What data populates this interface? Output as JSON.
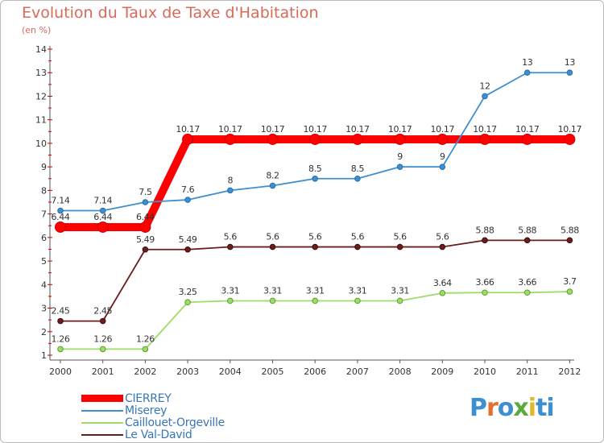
{
  "header": {
    "title": "Evolution du Taux de Taxe d'Habitation",
    "subtitle": "(en %)"
  },
  "logo": {
    "text": "Proxiti",
    "letters": [
      "P",
      "r",
      "o",
      "x",
      "i",
      "ti"
    ]
  },
  "colors": {
    "title": "#d86a5a",
    "axis": "#555555",
    "cierrey": "#ff0000",
    "miserey": "#3d8fd0",
    "caillouet": "#9edc6a",
    "levaldavid": "#6b1d1d",
    "legend_text": "#3a76b3"
  },
  "chart_data": {
    "type": "line",
    "title": "Evolution du Taux de Taxe d'Habitation",
    "subtitle": "(en %)",
    "xlabel": "",
    "ylabel": "",
    "x": [
      "2000",
      "2001",
      "2002",
      "2003",
      "2004",
      "2005",
      "2006",
      "2007",
      "2008",
      "2009",
      "2010",
      "2011",
      "2012"
    ],
    "ylim": [
      1,
      14
    ],
    "yticks": [
      1,
      2,
      3,
      4,
      5,
      6,
      7,
      8,
      9,
      10,
      11,
      12,
      13,
      14
    ],
    "grid": false,
    "legend_position": "bottom-left",
    "series": [
      {
        "name": "CIERREY",
        "color": "#ff0000",
        "style": "thick",
        "values": [
          6.44,
          6.44,
          6.44,
          10.17,
          10.17,
          10.17,
          10.17,
          10.17,
          10.17,
          10.17,
          10.17,
          10.17,
          10.17
        ],
        "labels": [
          "6.44",
          "6.44",
          "6.44",
          "10.17",
          "10.17",
          "10.17",
          "10.17",
          "10.17",
          "10.17",
          "10.17",
          "10.17",
          "10.17",
          "10.17"
        ]
      },
      {
        "name": "Miserey",
        "color": "#3d8fd0",
        "style": "thin",
        "values": [
          7.14,
          7.14,
          7.5,
          7.6,
          8,
          8.2,
          8.5,
          8.5,
          9,
          9,
          12,
          13,
          13
        ],
        "labels": [
          "7.14",
          "7.14",
          "7.5",
          "7.6",
          "8",
          "8.2",
          "8.5",
          "8.5",
          "9",
          "9",
          "12",
          "13",
          "13"
        ]
      },
      {
        "name": "Caillouet-Orgeville",
        "color": "#9edc6a",
        "style": "thin",
        "values": [
          1.26,
          1.26,
          1.26,
          3.25,
          3.31,
          3.31,
          3.31,
          3.31,
          3.31,
          3.64,
          3.66,
          3.66,
          3.7
        ],
        "labels": [
          "1.26",
          "1.26",
          "1.26",
          "3.25",
          "3.31",
          "3.31",
          "3.31",
          "3.31",
          "3.31",
          "3.64",
          "3.66",
          "3.66",
          "3.7"
        ]
      },
      {
        "name": "Le Val-David",
        "color": "#6b1d1d",
        "style": "thin",
        "values": [
          2.45,
          2.45,
          5.49,
          5.49,
          5.6,
          5.6,
          5.6,
          5.6,
          5.6,
          5.6,
          5.88,
          5.88,
          5.88
        ],
        "labels": [
          "2.45",
          "2.45",
          "5.49",
          "5.49",
          "5.6",
          "5.6",
          "5.6",
          "5.6",
          "5.6",
          "5.6",
          "5.88",
          "5.88",
          "5.88"
        ]
      }
    ]
  }
}
